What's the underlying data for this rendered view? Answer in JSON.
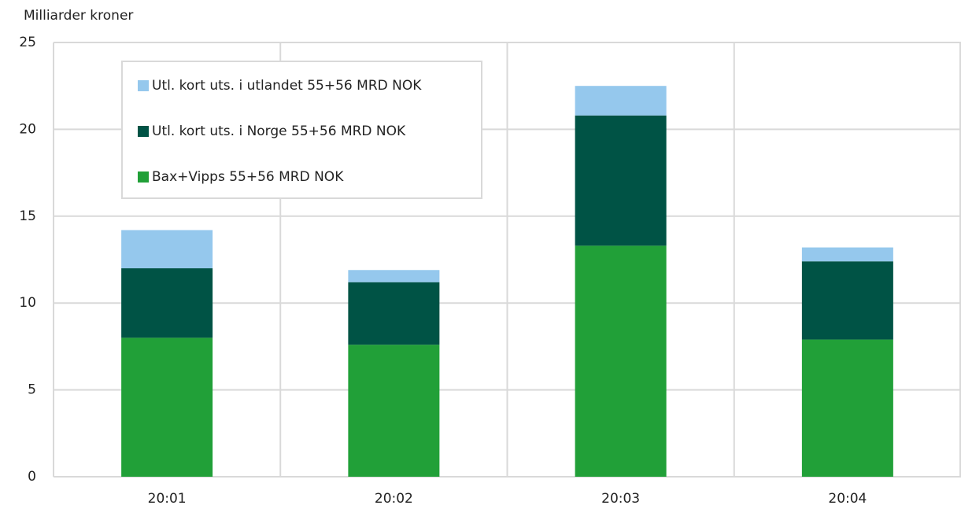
{
  "chart_data": {
    "type": "stacked_bar",
    "y_label": "Milliarder kroner",
    "categories": [
      "20:01",
      "20:02",
      "20:03",
      "20:04"
    ],
    "series": [
      {
        "name": "Bax+Vipps 55+56 MRD NOK",
        "color": "#21a038",
        "values": [
          8.0,
          7.6,
          13.3,
          7.9
        ]
      },
      {
        "name": "Utl. kort uts. i Norge 55+56 MRD NOK",
        "color": "#005345",
        "values": [
          4.0,
          3.6,
          7.5,
          4.5
        ]
      },
      {
        "name": "Utl. kort uts. i utlandet 55+56 MRD NOK",
        "color": "#95c8ed",
        "values": [
          2.2,
          0.7,
          1.7,
          0.8
        ]
      }
    ],
    "ylim": [
      0,
      25
    ],
    "yticks": [
      0,
      5,
      10,
      15,
      20,
      25
    ],
    "grid": true,
    "legend": "upper left"
  }
}
